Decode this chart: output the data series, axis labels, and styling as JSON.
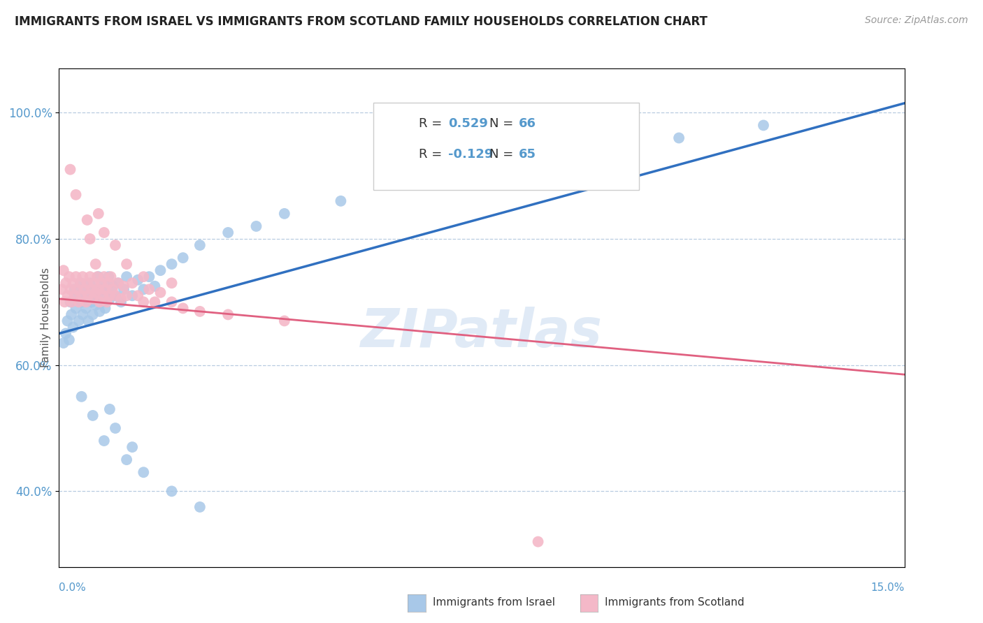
{
  "title": "IMMIGRANTS FROM ISRAEL VS IMMIGRANTS FROM SCOTLAND FAMILY HOUSEHOLDS CORRELATION CHART",
  "source": "Source: ZipAtlas.com",
  "ylabel": "Family Households",
  "xlim": [
    0.0,
    15.0
  ],
  "ylim": [
    28.0,
    107.0
  ],
  "yticks": [
    40.0,
    60.0,
    80.0,
    100.0
  ],
  "ytick_labels": [
    "40.0%",
    "60.0%",
    "80.0%",
    "100.0%"
  ],
  "legend_israel_r": "0.529",
  "legend_israel_n": "66",
  "legend_scotland_r": "-0.129",
  "legend_scotland_n": "65",
  "israel_color": "#a8c8e8",
  "scotland_color": "#f4b8c8",
  "israel_line_color": "#3070c0",
  "scotland_line_color": "#e06080",
  "watermark": "ZIPatlas",
  "israel_points": [
    [
      0.08,
      63.5
    ],
    [
      0.12,
      65.0
    ],
    [
      0.15,
      67.0
    ],
    [
      0.18,
      64.0
    ],
    [
      0.2,
      70.0
    ],
    [
      0.22,
      68.0
    ],
    [
      0.25,
      66.0
    ],
    [
      0.28,
      72.0
    ],
    [
      0.3,
      69.0
    ],
    [
      0.32,
      71.0
    ],
    [
      0.35,
      67.0
    ],
    [
      0.38,
      73.0
    ],
    [
      0.4,
      70.0
    ],
    [
      0.42,
      68.0
    ],
    [
      0.45,
      72.0
    ],
    [
      0.48,
      69.0
    ],
    [
      0.5,
      71.0
    ],
    [
      0.52,
      67.0
    ],
    [
      0.55,
      73.0
    ],
    [
      0.58,
      70.0
    ],
    [
      0.6,
      68.0
    ],
    [
      0.62,
      72.0
    ],
    [
      0.65,
      69.5
    ],
    [
      0.68,
      71.0
    ],
    [
      0.7,
      74.0
    ],
    [
      0.72,
      68.5
    ],
    [
      0.75,
      72.0
    ],
    [
      0.78,
      70.0
    ],
    [
      0.8,
      73.0
    ],
    [
      0.82,
      69.0
    ],
    [
      0.85,
      71.5
    ],
    [
      0.88,
      74.0
    ],
    [
      0.9,
      70.5
    ],
    [
      0.95,
      72.5
    ],
    [
      1.0,
      71.0
    ],
    [
      1.05,
      73.0
    ],
    [
      1.1,
      70.0
    ],
    [
      1.15,
      72.0
    ],
    [
      1.2,
      74.0
    ],
    [
      1.3,
      71.0
    ],
    [
      1.4,
      73.5
    ],
    [
      1.5,
      72.0
    ],
    [
      1.6,
      74.0
    ],
    [
      1.7,
      72.5
    ],
    [
      1.8,
      75.0
    ],
    [
      2.0,
      76.0
    ],
    [
      2.2,
      77.0
    ],
    [
      2.5,
      79.0
    ],
    [
      3.0,
      81.0
    ],
    [
      3.5,
      82.0
    ],
    [
      4.0,
      84.0
    ],
    [
      5.0,
      86.0
    ],
    [
      6.5,
      89.0
    ],
    [
      8.0,
      92.0
    ],
    [
      9.5,
      94.0
    ],
    [
      11.0,
      96.0
    ],
    [
      12.5,
      98.0
    ],
    [
      0.4,
      55.0
    ],
    [
      0.6,
      52.0
    ],
    [
      0.8,
      48.0
    ],
    [
      1.0,
      50.0
    ],
    [
      1.3,
      47.0
    ],
    [
      1.5,
      43.0
    ],
    [
      2.0,
      40.0
    ],
    [
      2.5,
      37.5
    ],
    [
      1.2,
      45.0
    ],
    [
      0.9,
      53.0
    ]
  ],
  "scotland_points": [
    [
      0.05,
      72.0
    ],
    [
      0.08,
      75.0
    ],
    [
      0.1,
      70.0
    ],
    [
      0.12,
      73.0
    ],
    [
      0.15,
      71.0
    ],
    [
      0.18,
      74.0
    ],
    [
      0.2,
      72.0
    ],
    [
      0.22,
      70.0
    ],
    [
      0.25,
      73.0
    ],
    [
      0.28,
      71.0
    ],
    [
      0.3,
      74.0
    ],
    [
      0.32,
      72.0
    ],
    [
      0.35,
      70.0
    ],
    [
      0.38,
      73.0
    ],
    [
      0.4,
      71.0
    ],
    [
      0.42,
      74.0
    ],
    [
      0.45,
      72.0
    ],
    [
      0.48,
      70.0
    ],
    [
      0.5,
      73.0
    ],
    [
      0.52,
      71.0
    ],
    [
      0.55,
      74.0
    ],
    [
      0.58,
      72.0
    ],
    [
      0.6,
      70.5
    ],
    [
      0.62,
      73.0
    ],
    [
      0.65,
      71.5
    ],
    [
      0.68,
      74.0
    ],
    [
      0.7,
      72.0
    ],
    [
      0.72,
      70.0
    ],
    [
      0.75,
      73.0
    ],
    [
      0.78,
      71.0
    ],
    [
      0.8,
      74.0
    ],
    [
      0.82,
      72.0
    ],
    [
      0.85,
      70.0
    ],
    [
      0.88,
      73.0
    ],
    [
      0.9,
      71.0
    ],
    [
      0.92,
      74.0
    ],
    [
      0.95,
      72.0
    ],
    [
      1.0,
      71.0
    ],
    [
      1.05,
      73.0
    ],
    [
      1.1,
      70.5
    ],
    [
      1.15,
      72.5
    ],
    [
      1.2,
      71.0
    ],
    [
      1.3,
      73.0
    ],
    [
      1.4,
      71.0
    ],
    [
      1.5,
      70.0
    ],
    [
      1.6,
      72.0
    ],
    [
      1.7,
      70.0
    ],
    [
      1.8,
      71.5
    ],
    [
      2.0,
      70.0
    ],
    [
      2.2,
      69.0
    ],
    [
      2.5,
      68.5
    ],
    [
      3.0,
      68.0
    ],
    [
      4.0,
      67.0
    ],
    [
      0.2,
      91.0
    ],
    [
      0.3,
      87.0
    ],
    [
      0.5,
      83.0
    ],
    [
      0.55,
      80.0
    ],
    [
      0.65,
      76.0
    ],
    [
      0.7,
      84.0
    ],
    [
      0.8,
      81.0
    ],
    [
      1.0,
      79.0
    ],
    [
      1.2,
      76.0
    ],
    [
      1.5,
      74.0
    ],
    [
      2.0,
      73.0
    ],
    [
      8.5,
      32.0
    ]
  ],
  "israel_reg_line": [
    [
      0.0,
      65.0
    ],
    [
      15.0,
      101.5
    ]
  ],
  "scotland_reg_line": [
    [
      0.0,
      70.5
    ],
    [
      15.0,
      58.5
    ]
  ]
}
